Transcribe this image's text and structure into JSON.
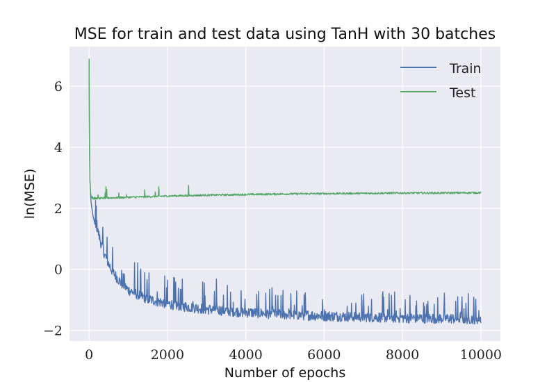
{
  "chart_data": {
    "type": "line",
    "title": "MSE for train and test data using TanH with 30 batches",
    "xlabel": "Number of epochs",
    "ylabel": "ln(MSE)",
    "xlim": [
      -500,
      10500
    ],
    "ylim": [
      -2.35,
      7.3
    ],
    "xticks": [
      0,
      2000,
      4000,
      6000,
      8000,
      10000
    ],
    "xtick_labels": [
      "0",
      "2000",
      "4000",
      "6000",
      "8000",
      "10000"
    ],
    "yticks": [
      -2,
      0,
      2,
      4,
      6
    ],
    "ytick_labels": [
      "−2",
      "0",
      "2",
      "4",
      "6"
    ],
    "grid": true,
    "legend_position": "top-right",
    "series": [
      {
        "name": "Train",
        "color": "#4c72b0",
        "x": [
          0,
          10,
          20,
          40,
          60,
          100,
          200,
          300,
          400,
          500,
          600,
          800,
          1000,
          1500,
          2000,
          2500,
          3000,
          4000,
          5000,
          6000,
          7000,
          8000,
          9000,
          10000
        ],
        "y": [
          6.9,
          4.2,
          3.0,
          2.4,
          2.1,
          1.75,
          1.2,
          0.7,
          0.3,
          0.0,
          -0.25,
          -0.6,
          -0.85,
          -1.15,
          -1.3,
          -1.4,
          -1.48,
          -1.58,
          -1.65,
          -1.7,
          -1.73,
          -1.76,
          -1.78,
          -1.8
        ]
      },
      {
        "name": "Test",
        "color": "#55a868",
        "x": [
          0,
          10,
          20,
          40,
          60,
          100,
          200,
          300,
          500,
          1000,
          2000,
          3000,
          4000,
          5000,
          6000,
          7000,
          8000,
          9000,
          10000
        ],
        "y": [
          6.9,
          4.0,
          2.9,
          2.5,
          2.35,
          2.3,
          2.3,
          2.3,
          2.31,
          2.33,
          2.37,
          2.4,
          2.42,
          2.44,
          2.45,
          2.46,
          2.47,
          2.47,
          2.48
        ]
      }
    ]
  }
}
